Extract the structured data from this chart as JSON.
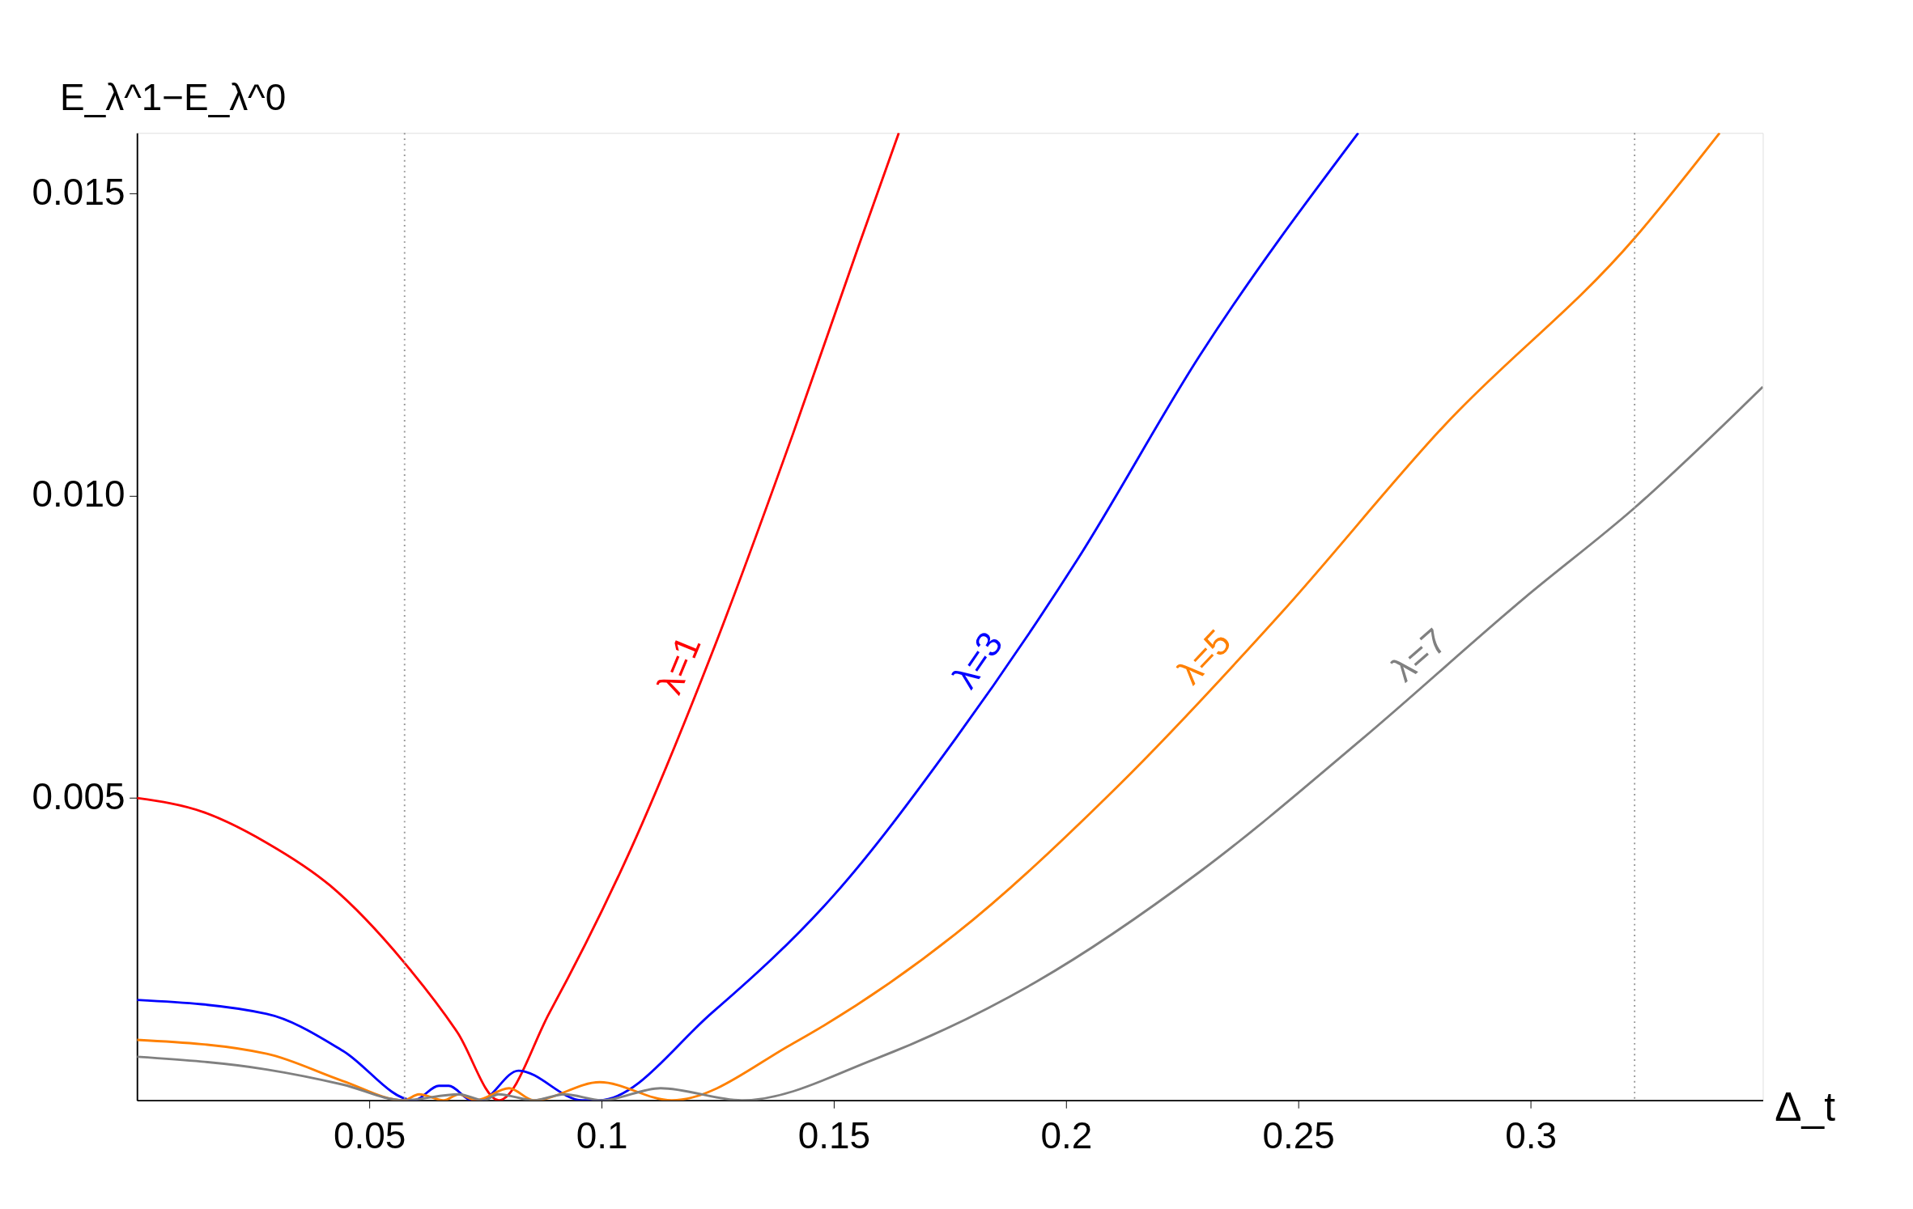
{
  "chart_data": {
    "type": "line",
    "xlabel": "Δ_t",
    "ylabel": "E_λ^1−E_λ^0",
    "xlim": [
      0,
      0.35
    ],
    "ylim": [
      0,
      0.016
    ],
    "xticks": [
      0.05,
      0.1,
      0.15,
      0.2,
      0.25,
      0.3
    ],
    "yticks": [
      0.005,
      {
        "value": 0.01,
        "label": "0.010"
      },
      0.015
    ],
    "grid": false,
    "legend": false,
    "marker": "none",
    "line_style": "solid",
    "ref_lines": [
      {
        "axis": "x",
        "value": 0.0576,
        "color": "#999999",
        "line_style": "dotted"
      },
      {
        "axis": "x",
        "value": 0.3224,
        "color": "#999999",
        "line_style": "dotted"
      }
    ],
    "series": [
      {
        "name": "λ=1",
        "color": "#ff0000",
        "x": [
          0,
          0.0142,
          0.0279,
          0.0416,
          0.0574,
          0.069,
          0.0779,
          0.0888,
          0.1064,
          0.1238,
          0.1412,
          0.1553,
          0.164
        ],
        "values": [
          0.005,
          0.00477,
          0.00426,
          0.00355,
          0.00229,
          0.00112,
          0,
          0.00145,
          0.00417,
          0.0074,
          0.01102,
          0.01412,
          0.016
        ]
      },
      {
        "name": "λ=3",
        "color": "#0000ff",
        "x": [
          0,
          0.0279,
          0.0443,
          0.0596,
          0.065,
          0.0671,
          0.0721,
          0.0739,
          0.0821,
          0.0959,
          0.0993,
          0.1238,
          0.15,
          0.1762,
          0.2025,
          0.2288,
          0.2629
        ],
        "values": [
          0.00166,
          0.00143,
          0.00082,
          0,
          0.00024,
          0.00024,
          0,
          0,
          0.00049,
          0,
          0,
          0.00145,
          0.00339,
          0.00598,
          0.00895,
          0.01232,
          0.016
        ]
      },
      {
        "name": "λ=5",
        "color": "#ff8000",
        "x": [
          0,
          0.0279,
          0.0443,
          0.0574,
          0.0607,
          0.066,
          0.0693,
          0.0729,
          0.0801,
          0.0854,
          0.0996,
          0.1151,
          0.1412,
          0.1762,
          0.2112,
          0.2462,
          0.2813,
          0.3224,
          0.3407
        ],
        "values": [
          0.001,
          0.00077,
          0.00032,
          0,
          0.0001,
          0,
          0.0001,
          0,
          0.0002,
          0,
          0.0003,
          0,
          0.00094,
          0.00275,
          0.0052,
          0.00805,
          0.01115,
          0.01426,
          0.016
        ]
      },
      {
        "name": "λ=7",
        "color": "#808080",
        "x": [
          0,
          0.0279,
          0.0443,
          0.0574,
          0.0693,
          0.0746,
          0.0778,
          0.0854,
          0.092,
          0.1,
          0.1127,
          0.1302,
          0.1588,
          0.1938,
          0.2288,
          0.2638,
          0.2987,
          0.3224,
          0.35
        ],
        "values": [
          0.00072,
          0.00051,
          0.00026,
          0,
          0.0001,
          0,
          0.0001,
          0,
          0.0001,
          0,
          0.0002,
          0,
          0.00068,
          0.00197,
          0.00378,
          0.00598,
          0.00831,
          0.0098,
          0.0118
        ]
      }
    ]
  }
}
